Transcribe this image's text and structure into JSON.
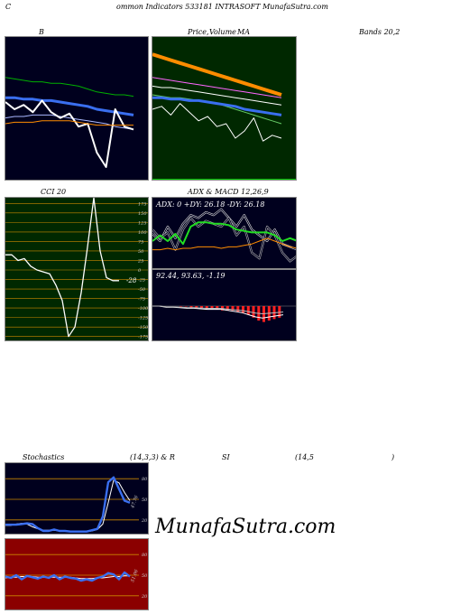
{
  "header": {
    "left": "C",
    "title": "ommon  Indicators 533181 INTRASOFT MunafaSutra.com"
  },
  "labels": {
    "b": "B",
    "price": "Price,",
    "volume": "Volume",
    "ma": "MA",
    "bands": "Bands 20,2",
    "cci": "CCI 20",
    "adx_macd": "ADX  & MACD 12,26,9",
    "stoch": "Stochastics",
    "stoch_params": "(14,3,3) & R",
    "si": "SI",
    "rsi_params": "(14,5",
    "close_paren": ")"
  },
  "watermark": "MunafaSutra.com",
  "colors": {
    "panel_dark": "#00001e",
    "panel_green": "#002800",
    "panel_red": "#8b0000",
    "orange": "#ff8c00",
    "blue": "#3a6ff0",
    "white": "#ffffff",
    "green": "#00c800",
    "bright_green": "#22dd22"
  },
  "chart_data": [
    {
      "type": "line",
      "name": "bollinger",
      "series": [
        {
          "values": [
            72,
            71,
            70,
            69,
            69,
            68,
            68,
            67,
            66,
            64,
            62,
            61,
            60,
            60,
            59
          ]
        },
        {
          "values": [
            58,
            58,
            57,
            57,
            56,
            56,
            55,
            54,
            53,
            52,
            50,
            49,
            48,
            47,
            46
          ]
        },
        {
          "values": [
            44,
            45,
            45,
            46,
            46,
            46,
            45,
            44,
            43,
            42,
            41,
            40,
            38,
            37,
            36
          ]
        },
        {
          "values": [
            55,
            50,
            53,
            48,
            56,
            48,
            44,
            47,
            38,
            40,
            20,
            10,
            50,
            38,
            36
          ]
        },
        {
          "values": [
            40,
            41,
            41,
            41,
            42,
            42,
            42,
            42,
            41,
            40,
            39,
            39,
            39,
            39,
            39
          ]
        }
      ]
    },
    {
      "type": "line",
      "name": "price-volume-ma",
      "series": [
        {
          "values": [
            88,
            86,
            84,
            82,
            80,
            78,
            76,
            74,
            72,
            70,
            68,
            66,
            64,
            62,
            60
          ]
        },
        {
          "values": [
            72,
            71,
            70,
            69,
            68,
            67,
            66,
            65,
            64,
            63,
            62,
            61,
            60,
            59,
            58
          ]
        },
        {
          "values": [
            66,
            65,
            65,
            64,
            63,
            62,
            61,
            60,
            59,
            58,
            57,
            56,
            55,
            54,
            53
          ]
        },
        {
          "values": [
            60,
            59,
            58,
            58,
            57,
            56,
            55,
            54,
            52,
            50,
            48,
            46,
            44,
            42,
            40
          ]
        },
        {
          "values": [
            58,
            58,
            57,
            57,
            56,
            56,
            55,
            54,
            53,
            52,
            50,
            49,
            48,
            47,
            46
          ]
        },
        {
          "values": [
            50,
            52,
            46,
            54,
            48,
            42,
            45,
            38,
            40,
            30,
            35,
            44,
            28,
            32,
            30
          ]
        }
      ]
    },
    {
      "type": "line",
      "name": "cci",
      "ticks": [
        175,
        150,
        125,
        100,
        75,
        50,
        25,
        0,
        -25,
        -50,
        -75,
        -100,
        -125,
        -150,
        -175
      ],
      "ylim": [
        -190,
        190
      ],
      "value_label": "-28",
      "series": [
        {
          "values": [
            40,
            40,
            25,
            30,
            10,
            0,
            -5,
            -10,
            -40,
            -80,
            -175,
            -150,
            -60,
            60,
            190,
            50,
            -20,
            -28,
            -28
          ]
        }
      ]
    },
    {
      "type": "line",
      "name": "adx",
      "readout": "ADX: 0   +DY: 26.18  -DY: 26.18",
      "series": [
        {
          "values": [
            20,
            24,
            20,
            25,
            18,
            30,
            33,
            33,
            32,
            32,
            31,
            28,
            27,
            26,
            26,
            26,
            24,
            20,
            22,
            20
          ]
        },
        {
          "values": [
            25,
            20,
            30,
            22,
            32,
            38,
            36,
            40,
            38,
            42,
            36,
            30,
            38,
            28,
            24,
            20,
            28,
            18,
            16,
            14
          ]
        },
        {
          "values": [
            28,
            22,
            26,
            14,
            28,
            36,
            30,
            34,
            32,
            30,
            36,
            24,
            30,
            12,
            8,
            30,
            24,
            12,
            6,
            10
          ]
        },
        {
          "values": [
            14,
            14,
            15,
            14,
            15,
            15,
            16,
            16,
            16,
            15,
            16,
            16,
            17,
            18,
            20,
            22,
            20,
            18,
            16,
            15
          ]
        }
      ]
    },
    {
      "type": "bar",
      "name": "macd",
      "readout": "92.44,  93.63,  -1.19",
      "values": [
        0,
        0,
        -1,
        -1,
        -1.5,
        -2,
        -2,
        -2.5,
        -3,
        -3,
        -3,
        -4,
        -5,
        -6,
        -8,
        -10,
        -11,
        -10,
        -9,
        -8
      ]
    },
    {
      "type": "line",
      "name": "stochastics",
      "ticks": [
        80,
        50,
        20
      ],
      "ylim": [
        0,
        100
      ],
      "value_label": "47.76",
      "series": [
        {
          "values": [
            13,
            13,
            13,
            14,
            15,
            14,
            8,
            4,
            4,
            6,
            4,
            4,
            3,
            3,
            3,
            3,
            5,
            7,
            25,
            75,
            82,
            65,
            48,
            45
          ]
        },
        {
          "values": [
            12,
            12,
            14,
            15,
            14,
            10,
            7,
            5,
            5,
            5,
            4,
            4,
            3,
            3,
            3,
            3,
            4,
            6,
            14,
            45,
            78,
            74,
            60,
            48
          ]
        }
      ]
    },
    {
      "type": "line",
      "name": "rsi",
      "ticks": [
        80,
        50,
        20
      ],
      "ylim": [
        0,
        100
      ],
      "value_label": "51.06",
      "series": [
        {
          "values": [
            48,
            46,
            50,
            44,
            49,
            47,
            45,
            48,
            46,
            50,
            44,
            48,
            46,
            45,
            42,
            44,
            42,
            46,
            48,
            53,
            51,
            44,
            54,
            48
          ]
        },
        {
          "values": [
            46,
            47,
            47,
            48,
            48,
            48,
            47,
            47,
            47,
            47,
            47,
            47,
            47,
            46,
            45,
            45,
            45,
            46,
            46,
            47,
            48,
            48,
            49,
            49
          ]
        }
      ]
    }
  ]
}
